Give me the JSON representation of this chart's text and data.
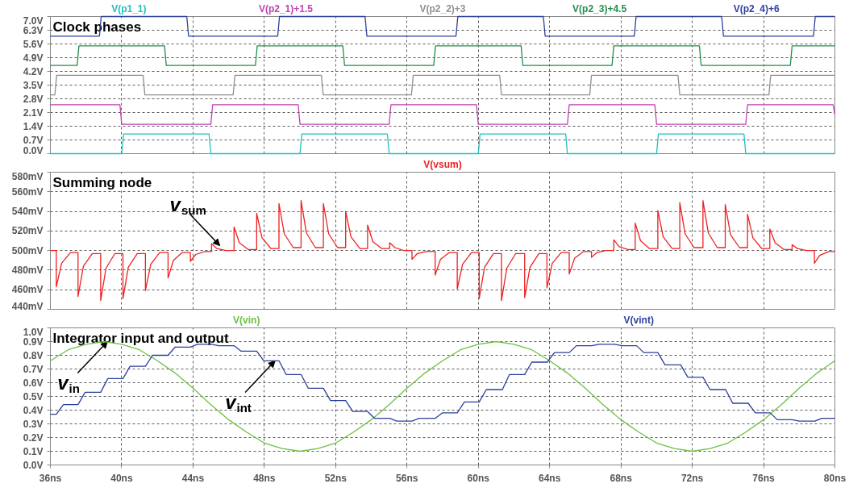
{
  "chart_data": [
    {
      "type": "line",
      "title": "Clock phases",
      "xlim": [
        36,
        80
      ],
      "xticks": [
        36,
        40,
        44,
        48,
        52,
        56,
        60,
        64,
        68,
        72,
        76,
        80
      ],
      "ylim": [
        0,
        7
      ],
      "yticks": [
        {
          "value": 0,
          "label": "0.0V"
        },
        {
          "value": 0.7,
          "label": "0.7V"
        },
        {
          "value": 1.4,
          "label": "1.4V"
        },
        {
          "value": 2.1,
          "label": "2.1V"
        },
        {
          "value": 2.8,
          "label": "2.8V"
        },
        {
          "value": 3.5,
          "label": "3.5V"
        },
        {
          "value": 4.2,
          "label": "4.2V"
        },
        {
          "value": 4.9,
          "label": "4.9V"
        },
        {
          "value": 5.6,
          "label": "5.6V"
        },
        {
          "value": 6.3,
          "label": "6.3V"
        },
        {
          "value": 7,
          "label": "7.0V"
        }
      ],
      "grid": true,
      "tick_labels": "y",
      "series": [
        {
          "name": "V(p1_1)",
          "color": "#20c0c0",
          "x": [
            36,
            40.0,
            40.1,
            44.9,
            45.0,
            50.0,
            50.1,
            54.9,
            55.0,
            60.0,
            60.1,
            64.9,
            65.0,
            70.0,
            70.1,
            74.9,
            75.0,
            80
          ],
          "values": [
            0,
            0,
            1,
            1,
            0,
            0,
            1,
            1,
            0,
            0,
            1,
            1,
            0,
            0,
            1,
            1,
            0,
            0
          ]
        },
        {
          "name": "V(p2_1)+1.5",
          "color": "#c040b0",
          "x": [
            36,
            39.9,
            40.0,
            45.0,
            45.1,
            49.9,
            50.0,
            55.0,
            55.1,
            59.9,
            60.0,
            65.0,
            65.1,
            69.9,
            70.0,
            75.0,
            75.1,
            79.9,
            80
          ],
          "values": [
            2.5,
            2.5,
            1.5,
            1.5,
            2.5,
            2.5,
            1.5,
            1.5,
            2.5,
            2.5,
            1.5,
            1.5,
            2.5,
            2.5,
            1.5,
            1.5,
            2.5,
            2.5,
            2.0
          ]
        },
        {
          "name": "V(p2_2)+3",
          "color": "#909090",
          "x": [
            36,
            36.25,
            36.35,
            41.2,
            41.3,
            46.25,
            46.35,
            51.2,
            51.3,
            56.25,
            56.35,
            61.2,
            61.3,
            66.25,
            66.35,
            71.2,
            71.3,
            76.3,
            76.4,
            80
          ],
          "values": [
            3,
            3,
            4,
            4,
            3,
            3,
            4,
            4,
            3,
            3,
            4,
            4,
            3,
            3,
            4,
            4,
            3,
            3,
            4,
            4
          ]
        },
        {
          "name": "V(p2_3)+4.5",
          "color": "#1f8f4a",
          "x": [
            36,
            37.5,
            37.6,
            42.4,
            42.5,
            47.5,
            47.6,
            52.4,
            52.5,
            57.5,
            57.6,
            62.4,
            62.5,
            67.5,
            67.6,
            72.4,
            72.5,
            77.5,
            77.6,
            80
          ],
          "values": [
            4.5,
            4.5,
            5.5,
            5.5,
            4.5,
            4.5,
            5.5,
            5.5,
            4.5,
            4.5,
            5.5,
            5.5,
            4.5,
            4.5,
            5.5,
            5.5,
            4.5,
            4.5,
            5.5,
            5.5
          ]
        },
        {
          "name": "V(p2_4)+6",
          "color": "#2c3f9c",
          "x": [
            36,
            38.75,
            38.85,
            43.65,
            43.75,
            48.75,
            48.85,
            53.65,
            53.75,
            58.75,
            58.85,
            63.65,
            63.75,
            68.75,
            68.85,
            73.65,
            73.75,
            78.8,
            78.9,
            80
          ],
          "values": [
            6,
            6,
            7,
            7,
            6,
            6,
            7,
            7,
            6,
            6,
            7,
            7,
            6,
            6,
            7,
            7,
            6,
            6,
            7,
            7
          ]
        }
      ]
    },
    {
      "type": "line",
      "title": "Summing node",
      "xlim": [
        36,
        80
      ],
      "xticks": [
        36,
        40,
        44,
        48,
        52,
        56,
        60,
        64,
        68,
        72,
        76,
        80
      ],
      "ylim": [
        440,
        580
      ],
      "yticks": [
        {
          "value": 440,
          "label": "440mV"
        },
        {
          "value": 460,
          "label": "460mV"
        },
        {
          "value": 480,
          "label": "480mV"
        },
        {
          "value": 500,
          "label": "500mV"
        },
        {
          "value": 520,
          "label": "520mV"
        },
        {
          "value": 540,
          "label": "540mV"
        },
        {
          "value": 560,
          "label": "560mV"
        },
        {
          "value": 580,
          "label": "580mV"
        }
      ],
      "grid": true,
      "tick_labels": "y",
      "annotations": [
        {
          "text": "v$_{sum}$",
          "x": 45.5,
          "y": 505
        }
      ],
      "series": [
        {
          "name": "V(vsum)",
          "color": "#ee2020",
          "x": [
            36,
            36.33,
            36.33,
            36.63,
            37.13,
            37.55,
            37.55,
            37.85,
            38.35,
            38.82,
            38.82,
            39.12,
            39.62,
            40.07,
            40.07,
            40.37,
            40.87,
            41.33,
            41.33,
            41.63,
            42.13,
            42.6,
            42.6,
            42.9,
            43.4,
            43.85,
            43.85,
            44.15,
            44.65,
            45.04,
            45.04,
            45.34,
            45.84,
            46.3,
            46.3,
            46.6,
            47.1,
            47.57,
            47.57,
            47.87,
            48.37,
            48.82,
            48.82,
            49.12,
            49.62,
            50.06,
            50.06,
            50.36,
            50.86,
            51.31,
            51.31,
            51.61,
            52.11,
            52.56,
            52.56,
            52.86,
            53.36,
            53.79,
            53.79,
            54.09,
            54.59,
            55.03,
            55.03,
            55.33,
            55.83,
            56.28,
            56.28,
            56.58,
            57.08,
            57.58,
            57.58,
            57.88,
            58.38,
            58.82,
            58.82,
            59.12,
            59.62,
            60.05,
            60.05,
            60.35,
            60.85,
            61.3,
            61.3,
            61.6,
            62.1,
            62.6,
            62.6,
            62.9,
            63.4,
            63.85,
            63.85,
            64.15,
            64.65,
            65.1,
            65.1,
            65.4,
            65.9,
            66.35,
            66.35,
            66.65,
            67.15,
            67.6,
            67.6,
            67.9,
            68.4,
            68.8,
            68.8,
            69.1,
            69.6,
            70.07,
            70.07,
            70.37,
            70.87,
            71.3,
            71.3,
            71.6,
            72.1,
            72.6,
            72.6,
            72.9,
            73.4,
            73.85,
            73.85,
            74.15,
            74.65,
            75.1,
            75.1,
            75.4,
            75.9,
            76.35,
            76.35,
            76.65,
            77.15,
            77.6,
            77.6,
            77.9,
            78.4,
            78.85,
            78.85,
            79.15,
            79.65,
            80
          ],
          "values": [
            500,
            500,
            463,
            487,
            498,
            498,
            453,
            484,
            497,
            497,
            449,
            482,
            497,
            497,
            451,
            483,
            497,
            497,
            459,
            486,
            498,
            498,
            472,
            490,
            498,
            498,
            489,
            496,
            499,
            499,
            507,
            502,
            500,
            500,
            524,
            508,
            501,
            501,
            538,
            513,
            502,
            502,
            548,
            517,
            503,
            503,
            551,
            518,
            503,
            503,
            548,
            517,
            503,
            503,
            540,
            514,
            502,
            502,
            526,
            509,
            502,
            502,
            508,
            503,
            500,
            500,
            491,
            497,
            499,
            499,
            475,
            491,
            498,
            498,
            461,
            486,
            498,
            498,
            451,
            483,
            497,
            497,
            449,
            482,
            497,
            497,
            452,
            483,
            497,
            497,
            462,
            487,
            498,
            498,
            476,
            492,
            499,
            499,
            493,
            498,
            500,
            500,
            511,
            504,
            501,
            501,
            528,
            510,
            502,
            502,
            541,
            514,
            502,
            502,
            549,
            517,
            503,
            503,
            551,
            518,
            503,
            503,
            547,
            516,
            503,
            503,
            537,
            513,
            502,
            502,
            522,
            508,
            501,
            501,
            506,
            502,
            500,
            500,
            487,
            495,
            499,
            499
          ]
        }
      ]
    },
    {
      "type": "line",
      "title": "Integrator input and output",
      "xlim": [
        36,
        80
      ],
      "xticks": [
        {
          "value": 36,
          "label": "36ns"
        },
        {
          "value": 40,
          "label": "40ns"
        },
        {
          "value": 44,
          "label": "44ns"
        },
        {
          "value": 48,
          "label": "48ns"
        },
        {
          "value": 52,
          "label": "52ns"
        },
        {
          "value": 56,
          "label": "56ns"
        },
        {
          "value": 60,
          "label": "60ns"
        },
        {
          "value": 64,
          "label": "64ns"
        },
        {
          "value": 68,
          "label": "68ns"
        },
        {
          "value": 72,
          "label": "72ns"
        },
        {
          "value": 76,
          "label": "76ns"
        },
        {
          "value": 80,
          "label": "80ns"
        }
      ],
      "ylim": [
        0,
        1
      ],
      "yticks": [
        {
          "value": 0,
          "label": "0.0V"
        },
        {
          "value": 0.1,
          "label": "0.1V"
        },
        {
          "value": 0.2,
          "label": "0.2V"
        },
        {
          "value": 0.3,
          "label": "0.3V"
        },
        {
          "value": 0.4,
          "label": "0.4V"
        },
        {
          "value": 0.5,
          "label": "0.5V"
        },
        {
          "value": 0.6,
          "label": "0.6V"
        },
        {
          "value": 0.7,
          "label": "0.7V"
        },
        {
          "value": 0.8,
          "label": "0.8V"
        },
        {
          "value": 0.9,
          "label": "0.9V"
        },
        {
          "value": 1,
          "label": "1.0V"
        }
      ],
      "grid": true,
      "annotations": [
        {
          "text": "v$_{in}$",
          "x": 39.2,
          "y": 0.9
        },
        {
          "text": "v$_{int}$",
          "x": 48.6,
          "y": 0.76
        }
      ],
      "series": [
        {
          "name": "V(vin)",
          "color": "#6cc040",
          "x": [
            36,
            37,
            38,
            39,
            40,
            41,
            42,
            43,
            44,
            45,
            46,
            47,
            48,
            49,
            50,
            51,
            52,
            53,
            54,
            55,
            56,
            57,
            58,
            59,
            60,
            61,
            62,
            63,
            64,
            65,
            66,
            67,
            68,
            69,
            70,
            71,
            72,
            73,
            74,
            75,
            76,
            77,
            78,
            79,
            80
          ],
          "values": [
            0.76,
            0.84,
            0.88,
            0.9,
            0.88,
            0.84,
            0.76,
            0.67,
            0.56,
            0.44,
            0.33,
            0.24,
            0.16,
            0.12,
            0.1,
            0.12,
            0.16,
            0.24,
            0.33,
            0.44,
            0.56,
            0.67,
            0.76,
            0.84,
            0.88,
            0.9,
            0.88,
            0.84,
            0.76,
            0.67,
            0.56,
            0.44,
            0.33,
            0.24,
            0.16,
            0.12,
            0.1,
            0.12,
            0.16,
            0.24,
            0.33,
            0.44,
            0.56,
            0.67,
            0.76
          ]
        },
        {
          "name": "V(vint)",
          "color": "#2a3f9c",
          "x": [
            36,
            36.33,
            36.73,
            37.55,
            37.95,
            38.82,
            39.22,
            40.07,
            40.47,
            41.33,
            41.73,
            42.6,
            43.0,
            43.85,
            44.25,
            45.04,
            45.44,
            46.3,
            46.7,
            47.57,
            47.97,
            48.82,
            49.22,
            50.06,
            50.46,
            51.31,
            51.71,
            52.56,
            52.96,
            53.79,
            54.19,
            55.03,
            55.43,
            56.28,
            56.68,
            57.58,
            57.98,
            58.82,
            59.22,
            60.05,
            60.45,
            61.35,
            61.75,
            62.6,
            63.0,
            63.87,
            64.27,
            65.1,
            65.5,
            66.37,
            66.77,
            67.65,
            68.05,
            68.88,
            69.28,
            70.07,
            70.47,
            71.35,
            71.75,
            72.6,
            73.0,
            73.87,
            74.27,
            75.14,
            75.54,
            76.37,
            76.77,
            77.6,
            78.0,
            78.87,
            79.27,
            80
          ],
          "values": [
            0.37,
            0.37,
            0.44,
            0.44,
            0.53,
            0.53,
            0.63,
            0.63,
            0.72,
            0.72,
            0.8,
            0.8,
            0.86,
            0.86,
            0.88,
            0.88,
            0.87,
            0.87,
            0.83,
            0.83,
            0.76,
            0.76,
            0.66,
            0.66,
            0.56,
            0.56,
            0.47,
            0.47,
            0.39,
            0.39,
            0.34,
            0.34,
            0.32,
            0.32,
            0.34,
            0.34,
            0.38,
            0.38,
            0.46,
            0.46,
            0.55,
            0.55,
            0.66,
            0.66,
            0.75,
            0.75,
            0.82,
            0.82,
            0.87,
            0.87,
            0.88,
            0.88,
            0.87,
            0.87,
            0.82,
            0.82,
            0.73,
            0.73,
            0.64,
            0.64,
            0.55,
            0.55,
            0.45,
            0.45,
            0.38,
            0.38,
            0.33,
            0.33,
            0.32,
            0.32,
            0.34,
            0.34
          ]
        }
      ]
    }
  ]
}
